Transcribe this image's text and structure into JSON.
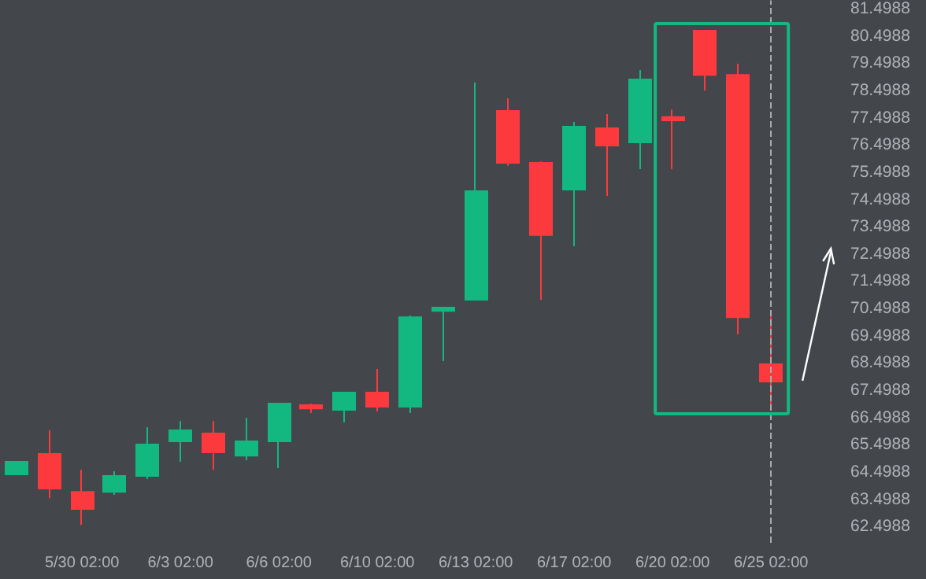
{
  "chart_data": {
    "type": "candlestick",
    "categories": [
      null,
      null,
      "5/30 02:00",
      null,
      null,
      "6/3 02:00",
      null,
      null,
      "6/6 02:00",
      null,
      null,
      "6/10 02:00",
      null,
      null,
      "6/13 02:00",
      null,
      null,
      "6/17 02:00",
      null,
      null,
      "6/20 02:00",
      null,
      null,
      "6/25 02:00"
    ],
    "ohlc": [
      [
        64.41,
        64.87,
        64.41,
        64.87
      ],
      [
        65.16,
        66.03,
        63.54,
        63.89
      ],
      [
        63.77,
        64.58,
        62.56,
        63.14
      ],
      [
        63.77,
        64.53,
        63.66,
        64.35
      ],
      [
        64.35,
        66.14,
        64.24,
        65.51
      ],
      [
        65.62,
        66.37,
        64.87,
        66.03
      ],
      [
        65.91,
        66.37,
        64.58,
        65.22
      ],
      [
        65.1,
        66.49,
        64.93,
        65.62
      ],
      [
        65.62,
        67.01,
        64.64,
        67.01
      ],
      [
        66.95,
        67.01,
        66.66,
        66.83
      ],
      [
        66.78,
        67.41,
        66.32,
        67.41
      ],
      [
        67.41,
        68.28,
        66.72,
        66.89
      ],
      [
        66.89,
        70.24,
        66.66,
        70.18
      ],
      [
        70.41,
        70.53,
        68.57,
        70.53
      ],
      [
        70.82,
        78.79,
        70.82,
        74.8
      ],
      [
        77.75,
        78.21,
        75.73,
        75.84
      ],
      [
        75.84,
        75.9,
        70.82,
        73.19
      ],
      [
        74.86,
        77.34,
        72.78,
        77.17
      ],
      [
        77.11,
        77.63,
        74.63,
        76.48
      ],
      [
        76.59,
        79.25,
        75.61,
        78.9
      ],
      [
        77.52,
        77.8,
        75.61,
        77.4
      ],
      [
        80.69,
        80.69,
        78.5,
        79.07
      ],
      [
        79.07,
        79.48,
        69.55,
        70.18
      ],
      [
        68.45,
        70.24,
        66.78,
        67.82
      ]
    ],
    "colors": [
      "#12b880",
      "#fc3a3e",
      "#fc3a3e",
      "#12b880",
      "#12b880",
      "#12b880",
      "#fc3a3e",
      "#12b880",
      "#12b880",
      "#fc3a3e",
      "#12b880",
      "#fc3a3e",
      "#12b880",
      "#12b880",
      "#12b880",
      "#fc3a3e",
      "#fc3a3e",
      "#12b880",
      "#fc3a3e",
      "#12b880",
      "#fc3a3e",
      "#fc3a3e",
      "#fc3a3e",
      "#fc3a3e"
    ],
    "ylim": [
      61.9,
      81.8
    ],
    "yticks": [
      62.4988,
      63.4988,
      64.4988,
      65.4988,
      66.4988,
      67.4988,
      68.4988,
      69.4988,
      70.4988,
      71.4988,
      72.4988,
      73.4988,
      74.4988,
      75.4988,
      76.4988,
      77.4988,
      78.4988,
      79.4988,
      80.4988,
      81.4988
    ],
    "ref_lines": [
      {
        "axis": "x",
        "value": "6/25 02:00",
        "color": "#aaaaaa",
        "line_style": "dashed"
      }
    ],
    "grid": false
  }
}
